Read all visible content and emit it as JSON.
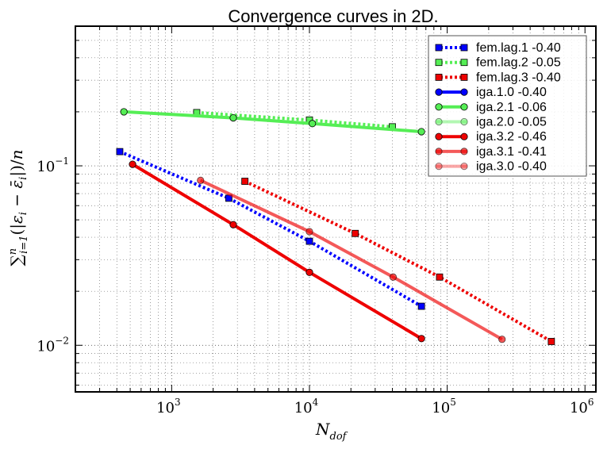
{
  "chart_data": {
    "type": "line",
    "title": "Convergence curves in 2D.",
    "xlabel": "N_dof",
    "ylabel": "Σ_{i=1}^{n} (|ε_i − ε̄_i|)/n",
    "xscale": "log",
    "yscale": "log",
    "xlim": [
      200,
      1200000
    ],
    "ylim": [
      0.0055,
      0.6
    ],
    "grid": true,
    "legend_position": "top-right",
    "x_ticks": [
      {
        "value": 1000,
        "base": "10",
        "exp": "3"
      },
      {
        "value": 10000,
        "base": "10",
        "exp": "4"
      },
      {
        "value": 100000,
        "base": "10",
        "exp": "5"
      },
      {
        "value": 1000000,
        "base": "10",
        "exp": "6"
      }
    ],
    "y_ticks": [
      {
        "value": 0.1,
        "base": "10",
        "exp": "−1"
      },
      {
        "value": 0.01,
        "base": "10",
        "exp": "−2"
      }
    ],
    "series": [
      {
        "name": "fem.lag.1 -0.40",
        "color": "#0000ff",
        "alpha": 1.0,
        "dash": "3,3",
        "marker": "square",
        "x": [
          420,
          2600,
          10000,
          65000
        ],
        "y": [
          0.12,
          0.066,
          0.038,
          0.0165
        ]
      },
      {
        "name": "fem.lag.2 -0.05",
        "color": "#55ee55",
        "alpha": 1.0,
        "dash": "3,3",
        "marker": "square",
        "x": [
          1520,
          10000,
          40000
        ],
        "y": [
          0.198,
          0.18,
          0.165
        ]
      },
      {
        "name": "fem.lag.3 -0.40",
        "color": "#ee0000",
        "alpha": 1.0,
        "dash": "3,3",
        "marker": "square",
        "x": [
          3400,
          21500,
          88000,
          570000
        ],
        "y": [
          0.082,
          0.042,
          0.024,
          0.0105
        ]
      },
      {
        "name": "iga.1.0 -0.40",
        "color": "#0000ff",
        "alpha": 1.0,
        "dash": "",
        "marker": "circle",
        "x": [],
        "y": []
      },
      {
        "name": "iga.2.1 -0.06",
        "color": "#55ee55",
        "alpha": 1.0,
        "dash": "",
        "marker": "circle",
        "x": [
          450,
          2800,
          10500,
          65000
        ],
        "y": [
          0.2,
          0.185,
          0.172,
          0.155
        ]
      },
      {
        "name": "iga.2.0 -0.05",
        "color": "#55ee55",
        "alpha": 0.45,
        "dash": "",
        "marker": "circle",
        "x": [],
        "y": []
      },
      {
        "name": "iga.3.2 -0.46",
        "color": "#ee0000",
        "alpha": 1.0,
        "dash": "",
        "marker": "circle",
        "x": [
          520,
          2800,
          10000,
          65000
        ],
        "y": [
          0.102,
          0.047,
          0.0255,
          0.0109
        ]
      },
      {
        "name": "iga.3.1 -0.41",
        "color": "#ee0000",
        "alpha": 0.65,
        "dash": "",
        "marker": "circle",
        "x": [
          1620,
          10000,
          40500,
          250000
        ],
        "y": [
          0.083,
          0.043,
          0.024,
          0.0108
        ]
      },
      {
        "name": "iga.3.0 -0.40",
        "color": "#ee0000",
        "alpha": 0.35,
        "dash": "",
        "marker": "circle",
        "x": [],
        "y": []
      }
    ]
  }
}
